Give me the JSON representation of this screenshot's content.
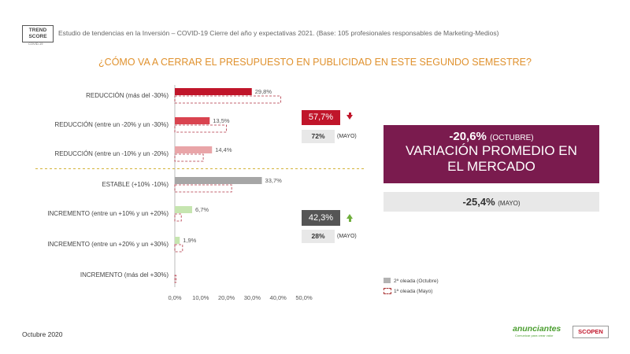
{
  "header": {
    "logo_line1": "TREND",
    "logo_line2": "SCORE",
    "logo_sub": "COVID-19",
    "subtitle": "Estudio de tendencias en la Inversión – COVID-19 Cierre del año y expectativas 2021. (Base: 105 profesionales responsables de Marketing-Medios)",
    "question": "¿CÓMO VA A CERRAR EL PRESUPUESTO EN PUBLICIDAD EN ESTE SEGUNDO SEMESTRE?"
  },
  "chart_data": {
    "type": "bar",
    "orientation": "horizontal",
    "categories": [
      "REDUCCIÓN (más del -30%)",
      "REDUCCIÓN (entre un -20% y un -30%)",
      "REDUCCIÓN (entre un -10% y un -20%)",
      "ESTABLE (+10% -10%)",
      "INCREMENTO (entre un +10% y un +20%)",
      "INCREMENTO (entre un +20% y un +30%)",
      "INCREMENTO (más del +30%)"
    ],
    "series": [
      {
        "name": "2ª oleada (Octubre)",
        "values": [
          29.8,
          13.5,
          14.4,
          33.7,
          6.7,
          1.9,
          0
        ],
        "labels": [
          "29,8%",
          "13,5%",
          "14,4%",
          "33,7%",
          "6,7%",
          "1,9%",
          ""
        ]
      },
      {
        "name": "1ª oleada (Mayo)",
        "values": [
          41.0,
          20.0,
          11.0,
          22.0,
          2.5,
          3.0,
          0.5
        ]
      }
    ],
    "bar_colors": [
      "#c0152a",
      "#d9434f",
      "#e9a5a8",
      "#a6a6a6",
      "#c6e5b0",
      "#c6e5b0",
      "#c6e5b0"
    ],
    "xlim": [
      0,
      50
    ],
    "xticks": [
      "0,0%",
      "10,0%",
      "20,0%",
      "30,0%",
      "40,0%",
      "50,0%"
    ],
    "legend": "bottom-right"
  },
  "summary": {
    "reduction_total": "57,7%",
    "reduction_may": "72%",
    "increase_total": "42,3%",
    "increase_may": "28%",
    "may_label": "(MAYO)"
  },
  "highlight": {
    "value": "-20,6%",
    "value_note": "(OCTUBRE)",
    "caption_line1": "VARIACIÓN PROMEDIO EN",
    "caption_line2": "EL MERCADO",
    "may_value": "-25,4%",
    "may_note": "(MAYO)"
  },
  "legend": {
    "current": "2ª oleada (Octubre)",
    "previous": "1ª oleada (Mayo)"
  },
  "footer": {
    "date": "Octubre 2020",
    "brand1": "anunciantes",
    "brand1_sub": "Comunicar para crear valor",
    "brand2": "SCOPEN"
  },
  "colors": {
    "accent_orange": "#e0922f",
    "red": "#c0152a",
    "purple": "#7a1b4e",
    "green": "#6fae3c"
  }
}
